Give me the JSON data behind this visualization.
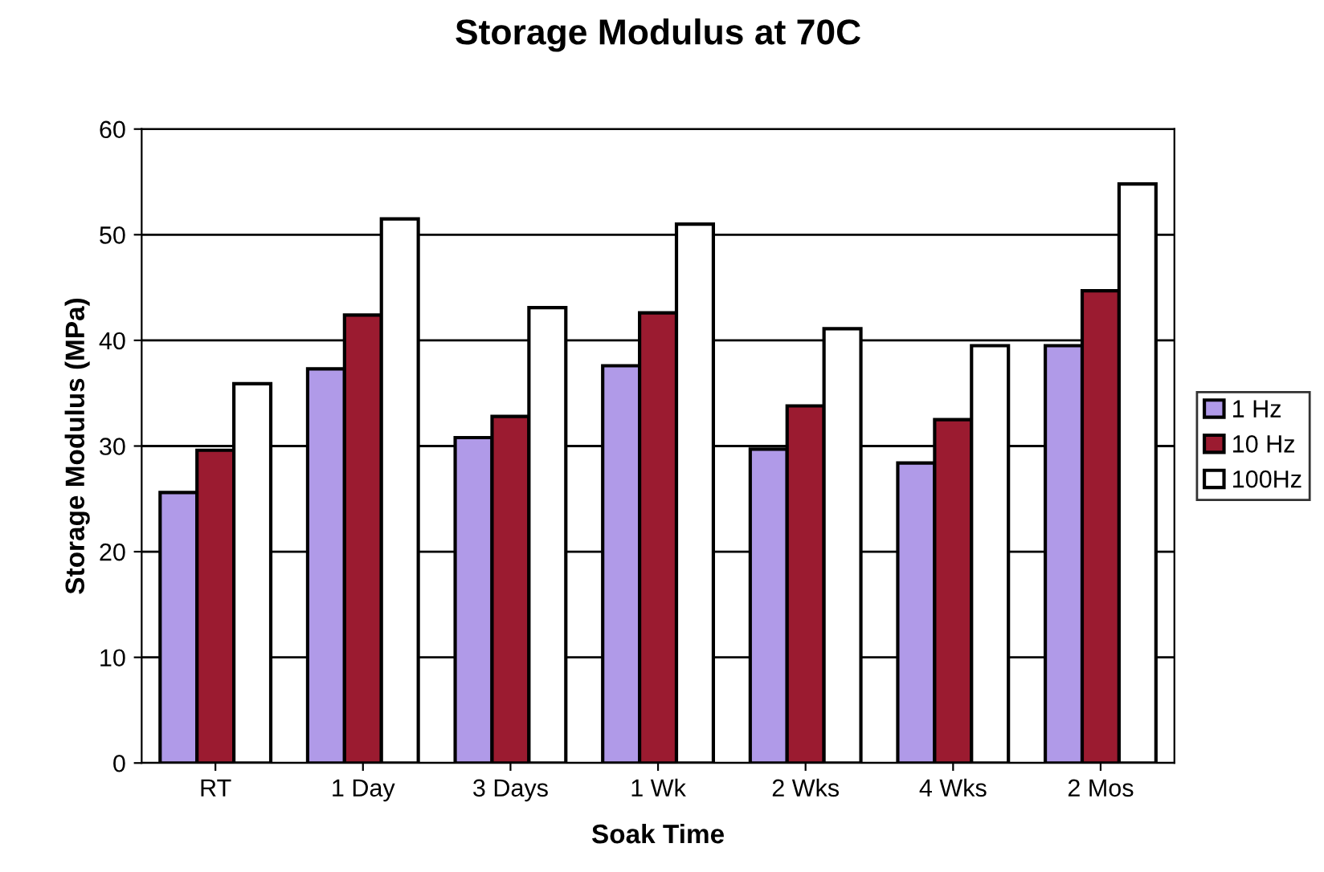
{
  "chart_data": {
    "type": "bar",
    "title": "Storage Modulus at 70C",
    "xlabel": "Soak Time",
    "ylabel": "Storage Modulus (MPa)",
    "categories": [
      "RT",
      "1 Day",
      "3 Days",
      "1 Wk",
      "2 Wks",
      "4 Wks",
      "2 Mos"
    ],
    "series": [
      {
        "name": "1 Hz",
        "color": "#b09ae8",
        "values": [
          25.6,
          37.3,
          30.8,
          37.6,
          29.7,
          28.4,
          39.5
        ]
      },
      {
        "name": "10 Hz",
        "color": "#9b1b30",
        "values": [
          29.6,
          42.4,
          32.8,
          42.6,
          33.8,
          32.5,
          44.7
        ]
      },
      {
        "name": "100Hz",
        "color": "#ffffff",
        "values": [
          35.9,
          51.5,
          43.1,
          51.0,
          41.1,
          39.5,
          54.8
        ]
      }
    ],
    "ylim": [
      0,
      60
    ],
    "yticks": [
      0,
      10,
      20,
      30,
      40,
      50,
      60
    ],
    "grid": "y",
    "legend": "right"
  }
}
